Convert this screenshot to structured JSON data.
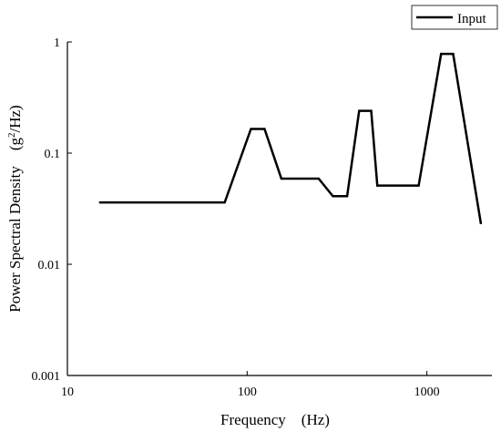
{
  "chart_data": {
    "type": "line",
    "xlabel": "Frequency　(Hz)",
    "ylabel_main": "Power Spectral Density　(g",
    "ylabel_sup": "2",
    "ylabel_tail": "/Hz)",
    "x_scale": "log",
    "y_scale": "log",
    "xlim": [
      10,
      2300
    ],
    "ylim": [
      0.001,
      1
    ],
    "x_ticks": [
      {
        "value": 10,
        "label": "10"
      },
      {
        "value": 100,
        "label": "100"
      },
      {
        "value": 1000,
        "label": "1000"
      }
    ],
    "y_ticks": [
      {
        "value": 0.001,
        "label": "0.001"
      },
      {
        "value": 0.01,
        "label": "0.01"
      },
      {
        "value": 0.1,
        "label": "0.1"
      },
      {
        "value": 1,
        "label": "1"
      }
    ],
    "grid": false,
    "legend_position": "top-right",
    "series": [
      {
        "name": "Input",
        "color": "#000000",
        "x": [
          15,
          75,
          105,
          125,
          155,
          250,
          300,
          360,
          420,
          490,
          530,
          900,
          1200,
          1400,
          2000
        ],
        "y": [
          0.036,
          0.036,
          0.165,
          0.165,
          0.059,
          0.059,
          0.041,
          0.041,
          0.24,
          0.24,
          0.051,
          0.051,
          0.78,
          0.78,
          0.023
        ]
      }
    ]
  }
}
